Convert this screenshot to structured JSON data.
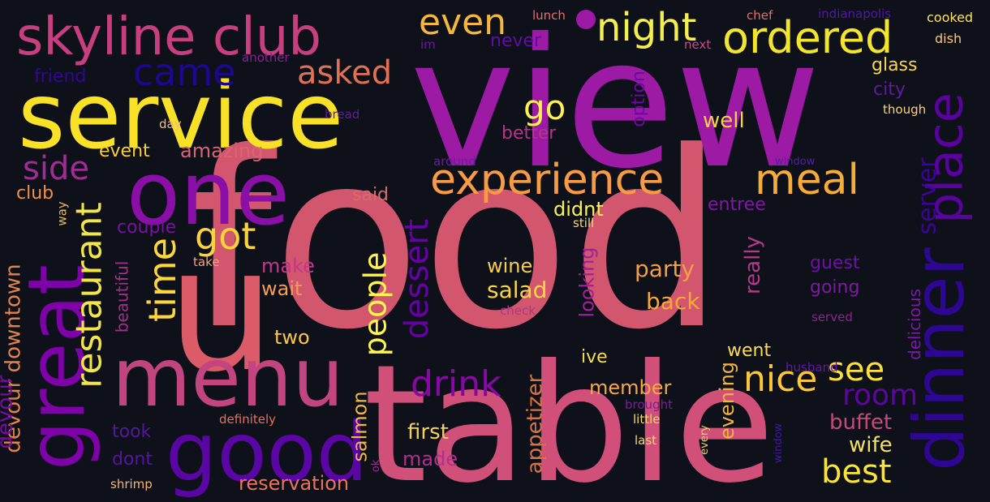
{
  "words": [
    {
      "text": "food",
      "color": "#d2566d"
    },
    {
      "text": "view",
      "color": "#9d1aa5"
    },
    {
      "text": "table",
      "color": "#d0507a"
    },
    {
      "text": "u",
      "color": "#db5b68"
    },
    {
      "text": "service",
      "color": "#f8e126"
    },
    {
      "text": "one",
      "color": "#8a0fa7"
    },
    {
      "text": "menu",
      "color": "#c3457f"
    },
    {
      "text": "good",
      "color": "#5a06a4"
    },
    {
      "text": "great",
      "color": "#7d03a8"
    },
    {
      "text": "dinner",
      "color": "#2d0794"
    },
    {
      "text": "skyline club",
      "color": "#c83f7f"
    },
    {
      "text": "ordered",
      "color": "#f3e52e"
    },
    {
      "text": "night",
      "color": "#f2ef4f"
    },
    {
      "text": "even",
      "color": "#f4b73c"
    },
    {
      "text": "experience",
      "color": "#f99b43"
    },
    {
      "text": "meal",
      "color": "#f9ab37"
    },
    {
      "text": "place",
      "color": "#5a02a0"
    },
    {
      "text": "came",
      "color": "#1d0692"
    },
    {
      "text": "asked",
      "color": "#e17055"
    },
    {
      "text": "restaurant",
      "color": "#f2e64a"
    },
    {
      "text": "time",
      "color": "#fdd63a"
    },
    {
      "text": "got",
      "color": "#fbd23b"
    },
    {
      "text": "go",
      "color": "#fef054"
    },
    {
      "text": "side",
      "color": "#a12c97"
    },
    {
      "text": "dessert",
      "color": "#6800a8"
    },
    {
      "text": "people",
      "color": "#fff44c"
    },
    {
      "text": "drink",
      "color": "#8808a6"
    },
    {
      "text": "nice",
      "color": "#fdc633"
    },
    {
      "text": "see",
      "color": "#fce037"
    },
    {
      "text": "room",
      "color": "#5e05a0"
    },
    {
      "text": "best",
      "color": "#fbe43a"
    },
    {
      "text": "server",
      "color": "#3c0398"
    },
    {
      "text": "devour downtown",
      "color": "#e3834a"
    },
    {
      "text": "devour",
      "color": "#7a0aa6"
    },
    {
      "text": "well",
      "color": "#fad044"
    },
    {
      "text": "salad",
      "color": "#f8d449"
    },
    {
      "text": "party",
      "color": "#f39e49"
    },
    {
      "text": "back",
      "color": "#f9a837"
    },
    {
      "text": "appetizer",
      "color": "#d67345"
    },
    {
      "text": "looking",
      "color": "#9f2098"
    },
    {
      "text": "really",
      "color": "#b33a89"
    },
    {
      "text": "evening",
      "color": "#f4b33a"
    },
    {
      "text": "buffet",
      "color": "#c54a79"
    },
    {
      "text": "wife",
      "color": "#f3e062"
    },
    {
      "text": "member",
      "color": "#f7a744"
    },
    {
      "text": "first",
      "color": "#f6d056"
    },
    {
      "text": "made",
      "color": "#b32f8f"
    },
    {
      "text": "salmon",
      "color": "#f0b746"
    },
    {
      "text": "reservation",
      "color": "#e9745a"
    },
    {
      "text": "two",
      "color": "#fbc54b"
    },
    {
      "text": "make",
      "color": "#c4368c"
    },
    {
      "text": "wait",
      "color": "#f49c55"
    },
    {
      "text": "wine",
      "color": "#f4ce4e"
    },
    {
      "text": "couple",
      "color": "#76149c"
    },
    {
      "text": "beautiful",
      "color": "#a52e8b"
    },
    {
      "text": "event",
      "color": "#f8cb40"
    },
    {
      "text": "amazing",
      "color": "#da6471"
    },
    {
      "text": "club",
      "color": "#f39048"
    },
    {
      "text": "said",
      "color": "#d86b6b"
    },
    {
      "text": "friend",
      "color": "#2f0796"
    },
    {
      "text": "city",
      "color": "#5f1aa0"
    },
    {
      "text": "glass",
      "color": "#f6d556"
    },
    {
      "text": "option",
      "color": "#6b09a5"
    },
    {
      "text": "better",
      "color": "#b3358a"
    },
    {
      "text": "didnt",
      "color": "#f9f256"
    },
    {
      "text": "entree",
      "color": "#8018a5"
    },
    {
      "text": "guest",
      "color": "#6c11a6"
    },
    {
      "text": "going",
      "color": "#7c1b9f"
    },
    {
      "text": "delicious",
      "color": "#7a1aa6"
    },
    {
      "text": "went",
      "color": "#fddb5a"
    },
    {
      "text": "ive",
      "color": "#f7db55"
    },
    {
      "text": "took",
      "color": "#52199d"
    },
    {
      "text": "dont",
      "color": "#5415a0"
    },
    {
      "text": "never",
      "color": "#5f0ea1"
    },
    {
      "text": "im",
      "color": "#6a17a0"
    },
    {
      "text": "lunch",
      "color": "#e66f6a"
    },
    {
      "text": "chef",
      "color": "#e46d6d"
    },
    {
      "text": "indianapolis",
      "color": "#4d1aa0"
    },
    {
      "text": "cooked",
      "color": "#fbe26a"
    },
    {
      "text": "dish",
      "color": "#f5c77b"
    },
    {
      "text": "next",
      "color": "#c44d89"
    },
    {
      "text": "another",
      "color": "#8a2390"
    },
    {
      "text": "though",
      "color": "#f9d27a"
    },
    {
      "text": "bread",
      "color": "#5e1da1"
    },
    {
      "text": "day",
      "color": "#f2b87d"
    },
    {
      "text": "around",
      "color": "#6a1aa2"
    },
    {
      "text": "window",
      "color": "#521ea0"
    },
    {
      "text": "still",
      "color": "#f6d474"
    },
    {
      "text": "take",
      "color": "#f3a37a"
    },
    {
      "text": "way",
      "color": "#e7b75f"
    },
    {
      "text": "check",
      "color": "#a9388b"
    },
    {
      "text": "served",
      "color": "#8d2292"
    },
    {
      "text": "husband",
      "color": "#64189f"
    },
    {
      "text": "brought",
      "color": "#7a1c97"
    },
    {
      "text": "little",
      "color": "#f7d66b"
    },
    {
      "text": "last",
      "color": "#f6da6a"
    },
    {
      "text": "every",
      "color": "#f3ce6f"
    },
    {
      "text": "definitely",
      "color": "#e5705d"
    },
    {
      "text": "shrimp",
      "color": "#f4b56f"
    },
    {
      "text": "ok",
      "color": "#9a2e8d"
    },
    {
      "text": "window",
      "color": "#3c1b9a"
    }
  ]
}
